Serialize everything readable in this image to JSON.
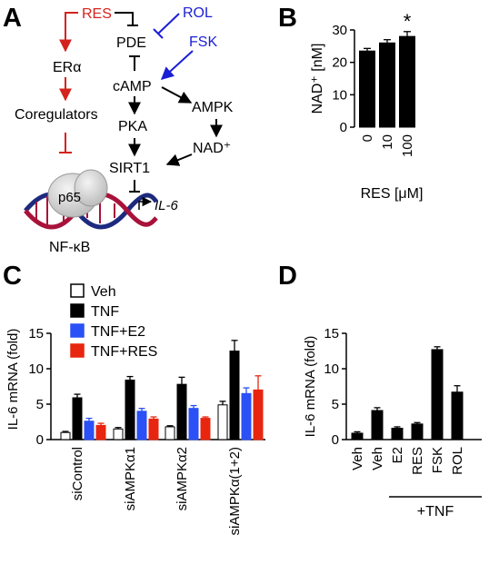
{
  "panels": {
    "A": {
      "letter": "A",
      "nodes": {
        "res": "RES",
        "rol": "ROL",
        "fsk": "FSK",
        "pde": "PDE",
        "camp": "cAMP",
        "er_alpha": "ERα",
        "coregulators": "Coregulators",
        "pka": "PKA",
        "ampk": "AMPK",
        "nad": "NAD⁺",
        "sirt1": "SIRT1",
        "p65": "p65",
        "il6": "IL-6",
        "nfkb": "NF-κB"
      },
      "colors": {
        "red": "#d4231e",
        "blue": "#1a1fd6",
        "black": "#000000"
      }
    },
    "B": {
      "letter": "B",
      "chart_index": 0
    },
    "C": {
      "letter": "C",
      "chart_index": 1
    },
    "D": {
      "letter": "D",
      "chart_index": 2
    }
  },
  "chart_data": [
    {
      "type": "bar",
      "panel": "B",
      "categories": [
        "0",
        "10",
        "100"
      ],
      "values": [
        23.5,
        26.0,
        28.0
      ],
      "errors": [
        0.8,
        1.0,
        1.5
      ],
      "ylabel": "NAD⁺ [nM]",
      "xlabel": "RES [μM]",
      "ylim": [
        0,
        30
      ],
      "yticks": [
        0,
        10,
        20,
        30
      ],
      "annotations": [
        {
          "category": "100",
          "text": "*"
        }
      ],
      "color": "#000000"
    },
    {
      "type": "bar",
      "panel": "C",
      "categories": [
        "siControl",
        "siAMPKα1",
        "siAMPKα2",
        "siAMPKα(1+2)"
      ],
      "series": [
        {
          "name": "Veh",
          "color": "#ffffff",
          "values": [
            1.0,
            1.5,
            1.8,
            4.9
          ],
          "errors": [
            0.15,
            0.2,
            0.15,
            0.5
          ]
        },
        {
          "name": "TNF",
          "color": "#000000",
          "values": [
            5.9,
            8.4,
            7.8,
            12.5
          ],
          "errors": [
            0.5,
            0.5,
            1.0,
            1.5
          ]
        },
        {
          "name": "TNF+E2",
          "color": "#2b50f5",
          "values": [
            2.6,
            4.0,
            4.4,
            6.5
          ],
          "errors": [
            0.4,
            0.4,
            0.4,
            0.8
          ]
        },
        {
          "name": "TNF+RES",
          "color": "#e8250f",
          "values": [
            2.0,
            2.9,
            3.0,
            7.0
          ],
          "errors": [
            0.3,
            0.3,
            0.2,
            2.0
          ]
        }
      ],
      "ylabel": "IL-6 mRNA (fold)",
      "ylim": [
        0,
        15
      ],
      "yticks": [
        0,
        5,
        10,
        15
      ],
      "legend_placement": "top-center"
    },
    {
      "type": "bar",
      "panel": "D",
      "categories": [
        "Veh",
        "Veh",
        "E2",
        "RES",
        "FSK",
        "ROL"
      ],
      "values": [
        0.9,
        4.1,
        1.6,
        2.2,
        12.7,
        6.7
      ],
      "errors": [
        0.2,
        0.4,
        0.2,
        0.2,
        0.4,
        0.9
      ],
      "ylabel": "IL-6 mRNA (fold)",
      "ylim": [
        0,
        15
      ],
      "yticks": [
        0,
        5,
        10,
        15
      ],
      "group_label": "+TNF",
      "color": "#000000"
    }
  ]
}
